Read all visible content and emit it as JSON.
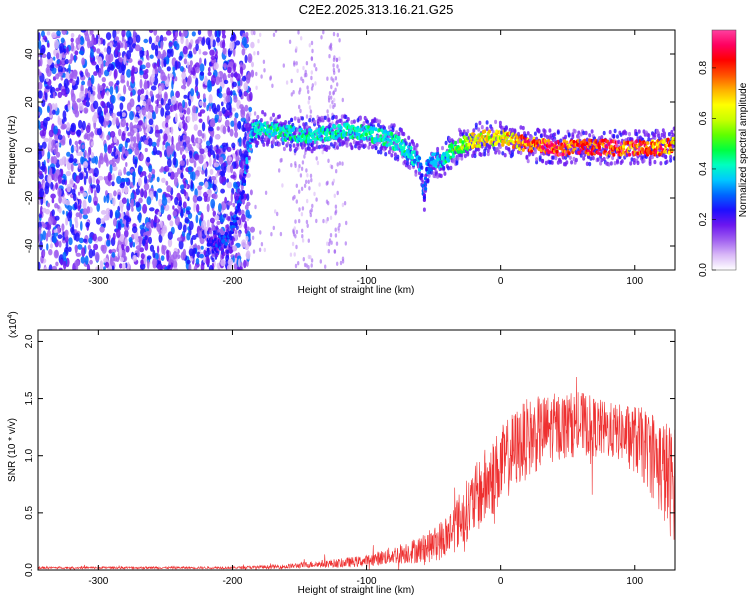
{
  "figure_title": "C2E2.2025.313.16.21.G25",
  "chart_data": [
    {
      "type": "heatmap",
      "xlabel": "Height of straight line (km)",
      "ylabel": "Frequency (Hz)",
      "xlim": [
        -345,
        130
      ],
      "ylim": [
        -50,
        50
      ],
      "x_ticks": [
        -300,
        -200,
        -100,
        0,
        100
      ],
      "y_ticks": [
        -40,
        -20,
        0,
        20,
        40
      ],
      "grid": false,
      "colorbar": {
        "label": "Normalized spectral amplitude",
        "range": [
          0,
          0.95
        ],
        "ticks": [
          "0.0",
          "0.2",
          "0.4",
          "0.6",
          "0.8"
        ],
        "tick_values": [
          0.0,
          0.2,
          0.4,
          0.6,
          0.8
        ],
        "colors": [
          "#ffffff",
          "#d9b8f7",
          "#a060f0",
          "#6b16f0",
          "#1d10ff",
          "#0066ff",
          "#00c8ff",
          "#00ffc0",
          "#00ff40",
          "#60ff00",
          "#c8ff00",
          "#ffff00",
          "#ffb000",
          "#ff5000",
          "#ff0000",
          "#ff0060",
          "#ff40a0"
        ]
      },
      "ridge": {
        "x": [
          -215,
          -205,
          -198,
          -192,
          -188,
          -185,
          -180,
          -160,
          -140,
          -120,
          -100,
          -85,
          -75,
          -65,
          -60,
          -57,
          -55,
          -50,
          -45,
          -40,
          -30,
          -20,
          -10,
          0,
          10,
          20,
          40,
          60,
          80,
          100,
          120,
          128
        ],
        "y": [
          -40,
          -38,
          -30,
          -15,
          0,
          8,
          9,
          7,
          6,
          8,
          7,
          5,
          2,
          -3,
          -6,
          -20,
          -8,
          -4,
          -5,
          -2,
          2,
          4,
          5,
          5,
          4,
          2,
          1,
          1,
          1,
          1,
          1,
          2
        ],
        "amplitude": [
          0.25,
          0.3,
          0.3,
          0.3,
          0.35,
          0.4,
          0.45,
          0.45,
          0.45,
          0.45,
          0.45,
          0.45,
          0.45,
          0.4,
          0.35,
          0.25,
          0.35,
          0.4,
          0.4,
          0.45,
          0.6,
          0.7,
          0.7,
          0.7,
          0.75,
          0.85,
          0.9,
          0.9,
          0.9,
          0.9,
          0.85,
          0.8
        ]
      }
    },
    {
      "type": "line",
      "xlabel": "Height of straight line (km)",
      "ylabel": "SNR (10 * v/v)",
      "y_multiplier_label": "(x10",
      "y_multiplier_exponent": "4",
      "y_multiplier_close": ")",
      "xlim": [
        -345,
        130
      ],
      "ylim": [
        0,
        2.1
      ],
      "x_ticks": [
        -300,
        -200,
        -100,
        0,
        100
      ],
      "y_ticks": [
        "0.0",
        "0.5",
        "1.0",
        "1.5",
        "2.0"
      ],
      "y_tick_values": [
        0.0,
        0.5,
        1.0,
        1.5,
        2.0
      ],
      "grid": false,
      "series": [
        {
          "color": "#ee3030",
          "envelope_x": [
            -345,
            -300,
            -250,
            -200,
            -160,
            -140,
            -120,
            -100,
            -80,
            -60,
            -50,
            -40,
            -30,
            -20,
            -10,
            0,
            10,
            20,
            40,
            60,
            80,
            90,
            100,
            110,
            120,
            125,
            130
          ],
          "envelope_mean": [
            0.02,
            0.02,
            0.02,
            0.02,
            0.03,
            0.05,
            0.06,
            0.08,
            0.13,
            0.18,
            0.22,
            0.3,
            0.45,
            0.6,
            0.75,
            0.9,
            1.05,
            1.15,
            1.25,
            1.28,
            1.22,
            1.2,
            1.15,
            1.05,
            0.9,
            0.8,
            0.75
          ],
          "envelope_spread": [
            0.01,
            0.01,
            0.01,
            0.01,
            0.02,
            0.03,
            0.04,
            0.05,
            0.08,
            0.12,
            0.15,
            0.2,
            0.25,
            0.3,
            0.35,
            0.35,
            0.35,
            0.35,
            0.3,
            0.28,
            0.25,
            0.25,
            0.3,
            0.35,
            0.45,
            0.5,
            0.5
          ]
        }
      ]
    }
  ]
}
